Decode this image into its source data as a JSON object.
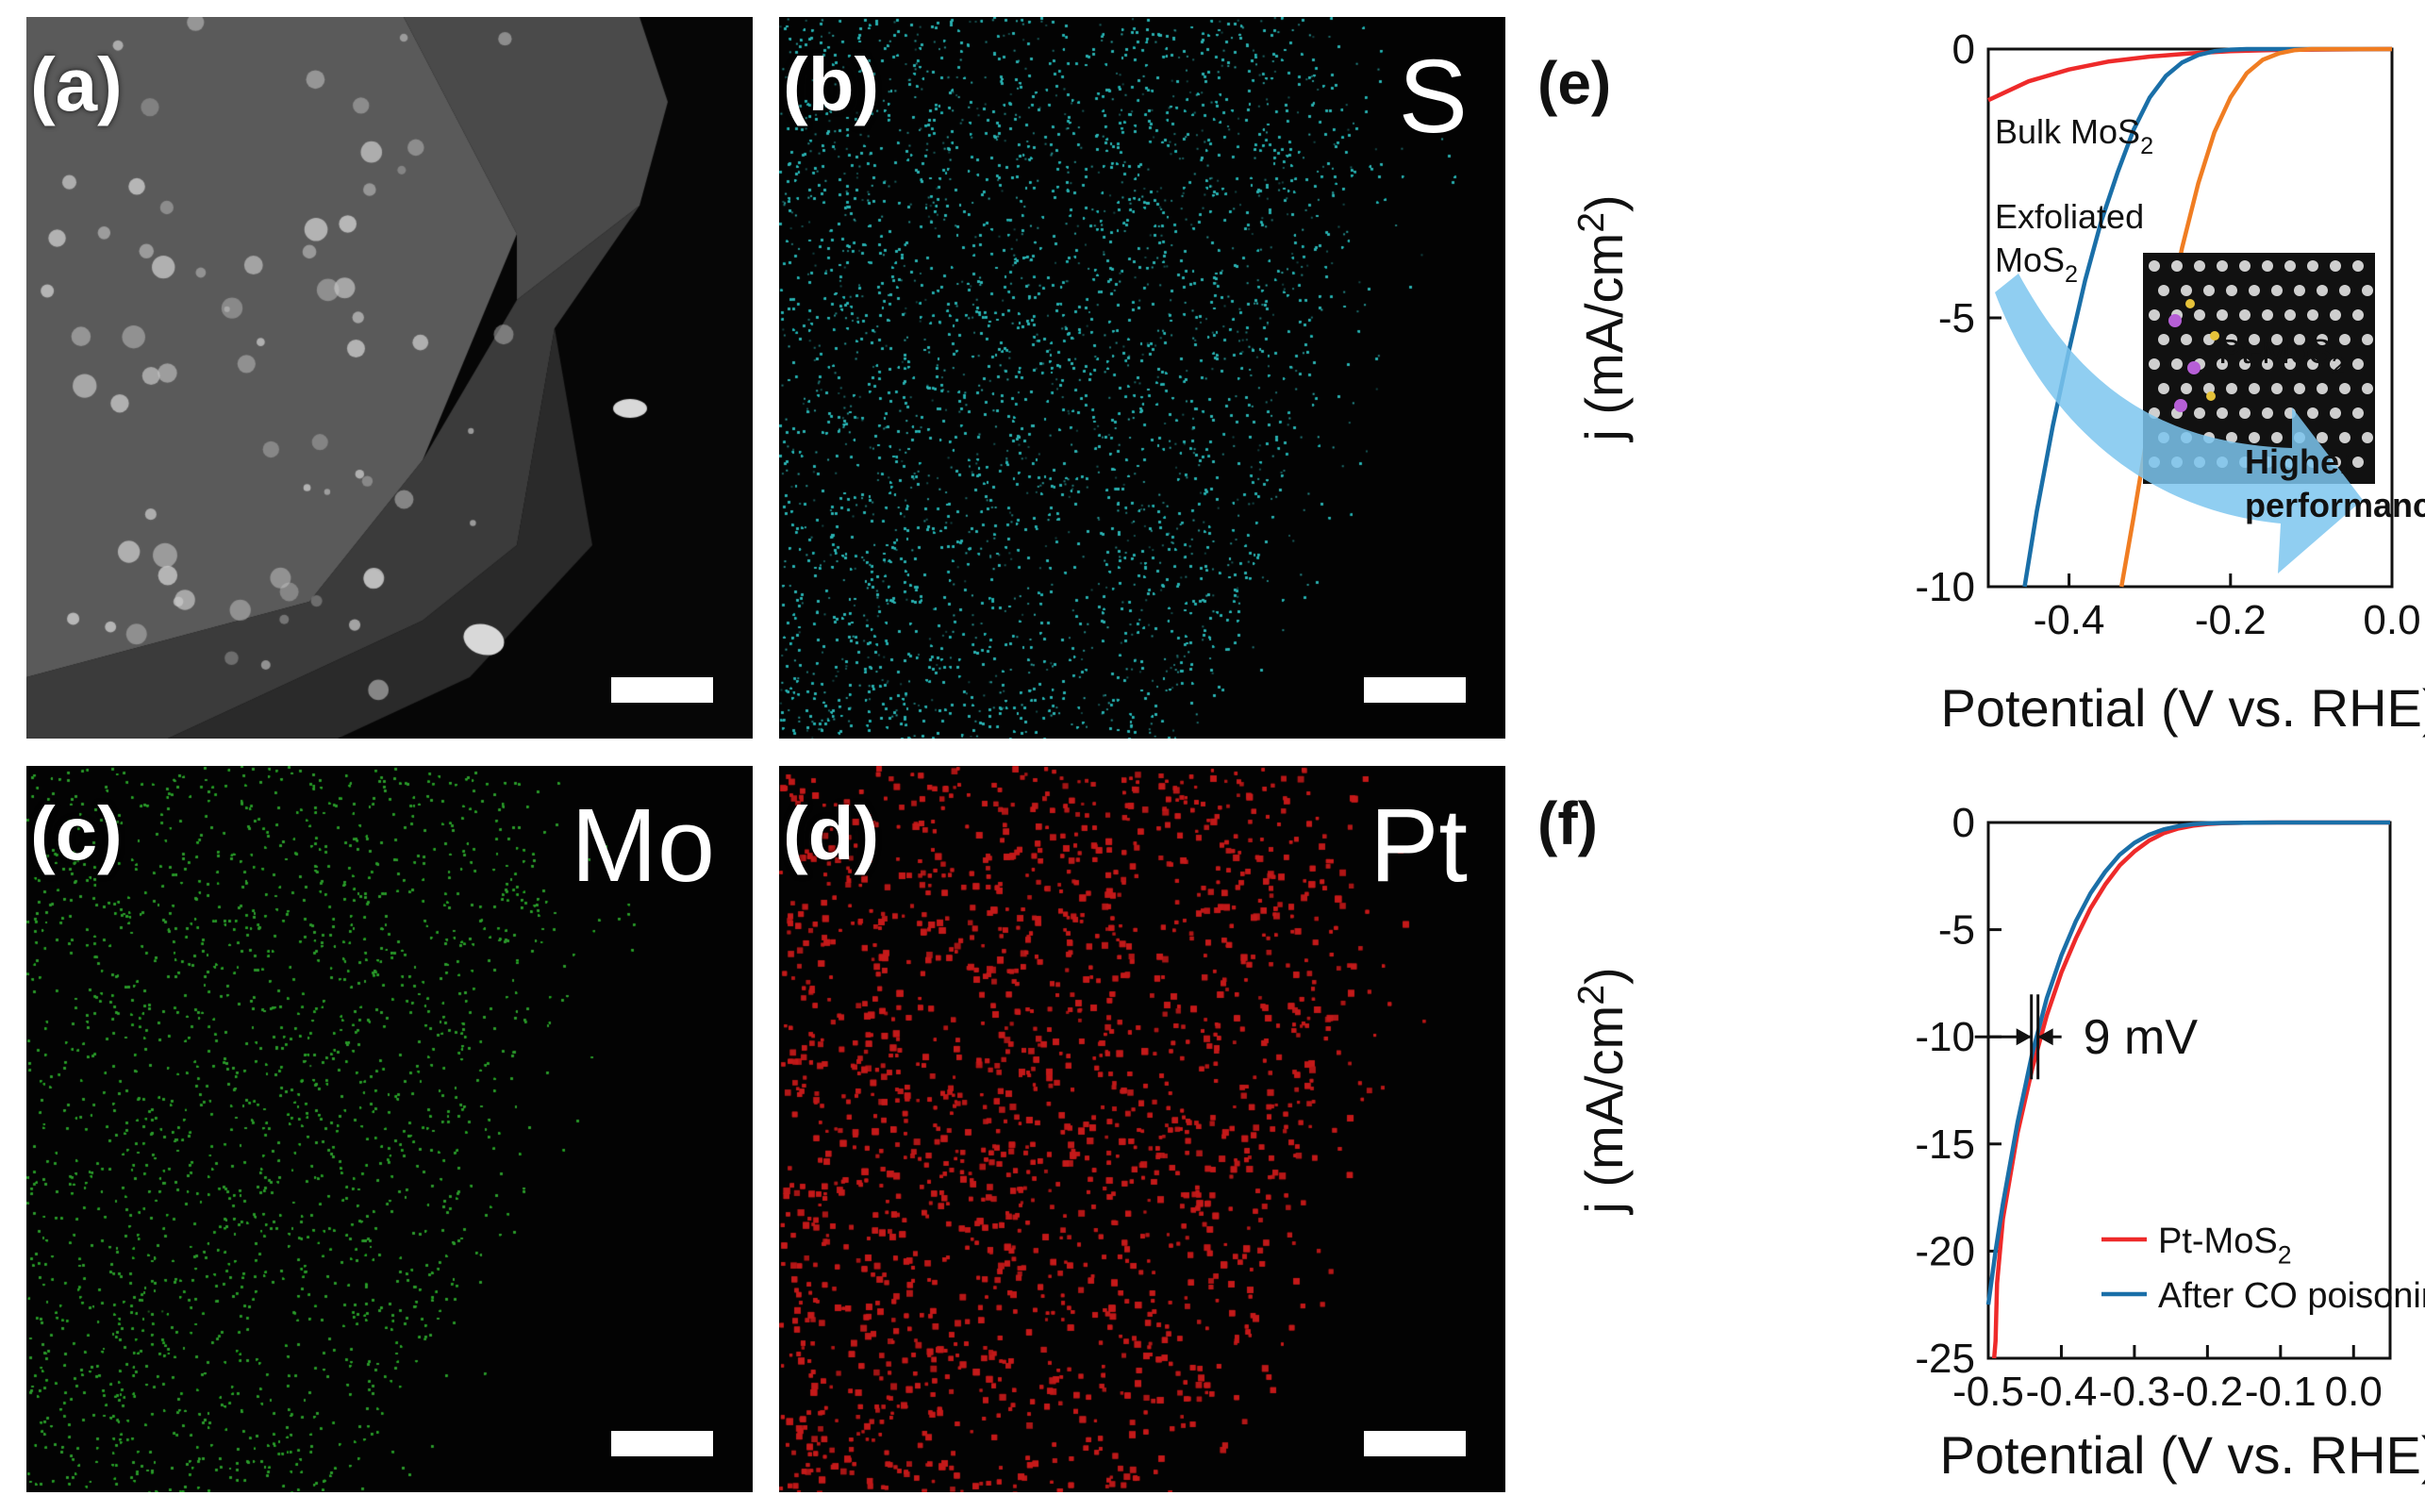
{
  "panels": {
    "a": {
      "label": "(a)",
      "element": ""
    },
    "b": {
      "label": "(b)",
      "element": "S",
      "color": "#2fb3b3"
    },
    "c": {
      "label": "(c)",
      "element": "Mo",
      "color": "#2f9a2f"
    },
    "d": {
      "label": "(d)",
      "element": "Pt",
      "color": "#c41a1a"
    }
  },
  "chart_data": [
    {
      "panel": "(e)",
      "type": "line",
      "xlabel": "Potential (V vs. RHE)",
      "ylabel": "j (mA/cm2)",
      "xlim": [
        -0.5,
        0.0
      ],
      "ylim": [
        -10,
        0
      ],
      "xticks": [
        -0.4,
        -0.2,
        0.0
      ],
      "yticks": [
        0,
        -5,
        -10
      ],
      "xtick_labels": [
        "-0.4",
        "-0.2",
        "0.0"
      ],
      "ytick_labels": [
        "0",
        "-5",
        "-10"
      ],
      "series": [
        {
          "name": "Bulk MoS2",
          "color": "#ee2a2a",
          "x": [
            -0.5,
            -0.45,
            -0.4,
            -0.35,
            -0.3,
            -0.25,
            -0.2,
            -0.15,
            -0.1,
            0.0
          ],
          "y": [
            -0.95,
            -0.6,
            -0.38,
            -0.23,
            -0.14,
            -0.08,
            -0.04,
            -0.02,
            -0.01,
            0
          ]
        },
        {
          "name": "Exfoliated MoS2",
          "color": "#1a6fa8",
          "x": [
            -0.455,
            -0.44,
            -0.42,
            -0.4,
            -0.38,
            -0.36,
            -0.34,
            -0.32,
            -0.3,
            -0.28,
            -0.26,
            -0.24,
            -0.22,
            -0.2,
            -0.18,
            -0.16,
            0.0
          ],
          "y": [
            -10,
            -8.6,
            -7.0,
            -5.6,
            -4.3,
            -3.2,
            -2.3,
            -1.5,
            -0.9,
            -0.5,
            -0.25,
            -0.11,
            -0.04,
            -0.01,
            0,
            0,
            0
          ]
        },
        {
          "name": "Pt-MoS2",
          "color": "#f07d22",
          "x": [
            -0.335,
            -0.32,
            -0.3,
            -0.28,
            -0.26,
            -0.24,
            -0.22,
            -0.2,
            -0.18,
            -0.16,
            -0.14,
            -0.12,
            -0.1,
            0.0
          ],
          "y": [
            -10,
            -8.7,
            -6.9,
            -5.2,
            -3.7,
            -2.5,
            -1.55,
            -0.9,
            -0.45,
            -0.2,
            -0.08,
            -0.02,
            0,
            0
          ]
        }
      ],
      "annotations": [
        {
          "text": "Bulk MoS",
          "sub": "2"
        },
        {
          "text": "Exfoliated",
          "text2": "MoS",
          "sub": "2"
        },
        {
          "text": "Pt-MoS",
          "sub": "2"
        },
        {
          "text": "Higher",
          "text2": "performance"
        }
      ],
      "panel_label": "(e)"
    },
    {
      "panel": "(f)",
      "type": "line",
      "xlabel": "Potential (V vs. RHE)",
      "ylabel": "j (mA/cm2)",
      "xlim": [
        -0.5,
        0.05
      ],
      "ylim": [
        -25,
        0
      ],
      "xticks": [
        -0.5,
        -0.4,
        -0.3,
        -0.2,
        -0.1,
        0.0
      ],
      "yticks": [
        0,
        -5,
        -10,
        -15,
        -20,
        -25
      ],
      "xtick_labels": [
        "-0.5",
        "-0.4",
        "-0.3",
        "-0.2",
        "-0.1",
        "0.0"
      ],
      "ytick_labels": [
        "0",
        "-5",
        "-10",
        "-15",
        "-20",
        "-25"
      ],
      "series": [
        {
          "name": "Pt-MoS2",
          "color": "#ee2a2a",
          "x": [
            -0.492,
            -0.49,
            -0.488,
            -0.48,
            -0.46,
            -0.44,
            -0.42,
            -0.4,
            -0.38,
            -0.36,
            -0.34,
            -0.32,
            -0.3,
            -0.28,
            -0.26,
            -0.24,
            -0.22,
            -0.2,
            -0.18,
            -0.15,
            -0.1,
            0.05
          ],
          "y": [
            -25,
            -24.2,
            -21.5,
            -18.5,
            -14.5,
            -11.5,
            -9.0,
            -7.0,
            -5.4,
            -4.0,
            -2.9,
            -2.0,
            -1.35,
            -0.85,
            -0.5,
            -0.28,
            -0.15,
            -0.07,
            -0.03,
            -0.01,
            0,
            0
          ]
        },
        {
          "name": "After CO poisoning",
          "color": "#1a6fa8",
          "x": [
            -0.5,
            -0.49,
            -0.48,
            -0.46,
            -0.44,
            -0.42,
            -0.4,
            -0.38,
            -0.36,
            -0.34,
            -0.32,
            -0.3,
            -0.28,
            -0.26,
            -0.24,
            -0.22,
            -0.2,
            -0.18,
            -0.15,
            -0.1,
            0.05
          ],
          "y": [
            -22.5,
            -20.0,
            -17.8,
            -14.0,
            -10.8,
            -8.2,
            -6.2,
            -4.6,
            -3.3,
            -2.3,
            -1.5,
            -0.95,
            -0.57,
            -0.32,
            -0.17,
            -0.08,
            -0.04,
            -0.02,
            -0.01,
            0,
            0
          ]
        }
      ],
      "annotations": [
        {
          "text": "9 mV"
        }
      ],
      "legend": "bottom-right",
      "panel_label": "(f)"
    }
  ]
}
